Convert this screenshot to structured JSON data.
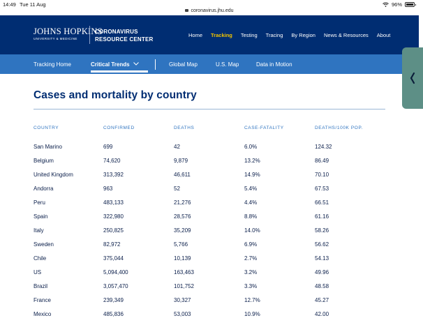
{
  "status_bar": {
    "time": "14:49",
    "date": "Tue 11 Aug",
    "url": "coronavirus.jhu.edu",
    "battery": "96%",
    "battery_level": 0.96
  },
  "header": {
    "logo_primary": "JOHNS HOPKINS",
    "logo_secondary": "UNIVERSITY & MEDICINE",
    "site_title_line1": "CORONAVIRUS",
    "site_title_line2": "RESOURCE CENTER",
    "nav": [
      "Home",
      "Tracking",
      "Testing",
      "Tracing",
      "By Region",
      "News & Resources",
      "About"
    ],
    "active_nav": "Tracking",
    "bg_color": "#002d72",
    "active_color": "#f1c400"
  },
  "subnav": {
    "items": [
      "Tracking Home",
      "Critical Trends",
      "Global Map",
      "U.S. Map",
      "Data in Motion"
    ],
    "active": "Critical Trends",
    "bg_color": "#2f74c0"
  },
  "side_tab": {
    "icon": "chevron-left-icon",
    "color": "#5d8f86"
  },
  "main": {
    "title": "Cases and mortality by country",
    "columns": [
      "COUNTRY",
      "CONFIRMED",
      "DEATHS",
      "CASE-FATALITY",
      "DEATHS/100K POP."
    ],
    "rows": [
      [
        "San Marino",
        "699",
        "42",
        "6.0%",
        "124.32"
      ],
      [
        "Belgium",
        "74,620",
        "9,879",
        "13.2%",
        "86.49"
      ],
      [
        "United Kingdom",
        "313,392",
        "46,611",
        "14.9%",
        "70.10"
      ],
      [
        "Andorra",
        "963",
        "52",
        "5.4%",
        "67.53"
      ],
      [
        "Peru",
        "483,133",
        "21,276",
        "4.4%",
        "66.51"
      ],
      [
        "Spain",
        "322,980",
        "28,576",
        "8.8%",
        "61.16"
      ],
      [
        "Italy",
        "250,825",
        "35,209",
        "14.0%",
        "58.26"
      ],
      [
        "Sweden",
        "82,972",
        "5,766",
        "6.9%",
        "56.62"
      ],
      [
        "Chile",
        "375,044",
        "10,139",
        "2.7%",
        "54.13"
      ],
      [
        "US",
        "5,094,400",
        "163,463",
        "3.2%",
        "49.96"
      ],
      [
        "Brazil",
        "3,057,470",
        "101,752",
        "3.3%",
        "48.58"
      ],
      [
        "France",
        "239,349",
        "30,327",
        "12.7%",
        "45.27"
      ],
      [
        "Mexico",
        "485,836",
        "53,003",
        "10.9%",
        "42.00"
      ]
    ]
  }
}
